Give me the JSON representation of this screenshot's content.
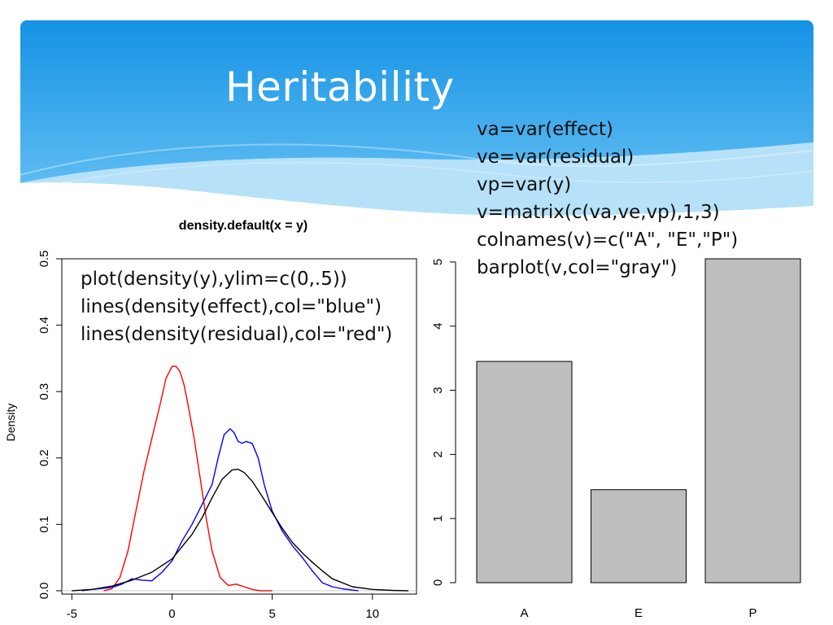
{
  "slide": {
    "title": "Heritability",
    "code_barplot": [
      "va=var(effect)",
      "ve=var(residual)",
      "vp=var(y)",
      "v=matrix(c(va,ve,vp),1,3)",
      "colnames(v)=c(\"A\", \"E\",\"P\")",
      "barplot(v,col=\"gray\")"
    ],
    "code_density": [
      "plot(density(y),ylim=c(0,.5))",
      "lines(density(effect),col=\"blue\")",
      "lines(density(residual),col=\"red\")"
    ],
    "colors": {
      "header_top": "#1592e4",
      "header_bottom": "#5dbcf2",
      "wave": "#a9dcf8"
    }
  },
  "chart_data": [
    {
      "type": "line",
      "title": "density.default(x = y)",
      "xlabel": "",
      "ylabel": "Density",
      "xlim": [
        -5.5,
        12.2
      ],
      "ylim": [
        -0.005,
        0.5
      ],
      "x_ticks": [
        -5,
        0,
        5,
        10
      ],
      "y_ticks": [
        0.0,
        0.1,
        0.2,
        0.3,
        0.4,
        0.5
      ],
      "x_tick_labels": [
        "-5",
        "0",
        "5",
        "10"
      ],
      "y_tick_labels": [
        "0.0",
        "0.1",
        "0.2",
        "0.3",
        "0.4",
        "0.5"
      ],
      "grid": false,
      "series": [
        {
          "color": "#ff0000",
          "x": [
            -3.4,
            -3.0,
            -2.6,
            -2.2,
            -1.8,
            -1.4,
            -1.0,
            -0.6,
            -0.3,
            0.0,
            0.2,
            0.4,
            0.6,
            0.8,
            1.1,
            1.4,
            1.7,
            2.0,
            2.4,
            2.8,
            3.2,
            3.6,
            4.0,
            4.4,
            5.0
          ],
          "y": [
            0.0,
            0.003,
            0.02,
            0.06,
            0.12,
            0.18,
            0.23,
            0.28,
            0.32,
            0.338,
            0.338,
            0.33,
            0.31,
            0.28,
            0.23,
            0.17,
            0.11,
            0.06,
            0.02,
            0.008,
            0.01,
            0.006,
            0.002,
            0.0,
            0.0
          ]
        },
        {
          "color": "#0000ff",
          "x": [
            -4.5,
            -4.0,
            -3.0,
            -2.5,
            -2.0,
            -1.5,
            -1.0,
            -0.5,
            0.0,
            0.5,
            1.0,
            1.5,
            2.0,
            2.3,
            2.6,
            2.9,
            3.1,
            3.3,
            3.5,
            3.7,
            4.0,
            4.3,
            4.6,
            5.0,
            5.5,
            6.0,
            6.5,
            7.0,
            7.5,
            8.0,
            8.5,
            9.0,
            9.3
          ],
          "y": [
            0.0,
            0.002,
            0.005,
            0.01,
            0.018,
            0.016,
            0.015,
            0.028,
            0.045,
            0.075,
            0.1,
            0.13,
            0.16,
            0.2,
            0.235,
            0.244,
            0.238,
            0.225,
            0.222,
            0.225,
            0.222,
            0.2,
            0.16,
            0.12,
            0.09,
            0.068,
            0.05,
            0.03,
            0.012,
            0.006,
            0.003,
            0.001,
            0.0
          ]
        },
        {
          "color": "#000000",
          "x": [
            -5.0,
            -4.0,
            -3.0,
            -2.0,
            -1.0,
            0.0,
            1.0,
            1.5,
            2.0,
            2.5,
            3.0,
            3.3,
            3.6,
            4.0,
            4.5,
            5.0,
            5.5,
            6.0,
            6.5,
            7.0,
            7.5,
            8.0,
            9.0,
            10.0,
            11.0,
            11.8
          ],
          "y": [
            0.0,
            0.002,
            0.007,
            0.016,
            0.028,
            0.048,
            0.085,
            0.11,
            0.14,
            0.168,
            0.182,
            0.183,
            0.178,
            0.165,
            0.142,
            0.118,
            0.094,
            0.073,
            0.057,
            0.043,
            0.03,
            0.018,
            0.006,
            0.002,
            0.0005,
            0.0
          ]
        }
      ]
    },
    {
      "type": "bar",
      "categories": [
        "A",
        "E",
        "P"
      ],
      "values": [
        3.45,
        1.45,
        5.05
      ],
      "ylim": [
        0,
        5.05
      ],
      "y_ticks": [
        0,
        1,
        2,
        3,
        4,
        5
      ],
      "y_tick_labels": [
        "0",
        "1",
        "2",
        "3",
        "4",
        "5"
      ],
      "bar_color": "#bebebe",
      "grid": false
    }
  ]
}
